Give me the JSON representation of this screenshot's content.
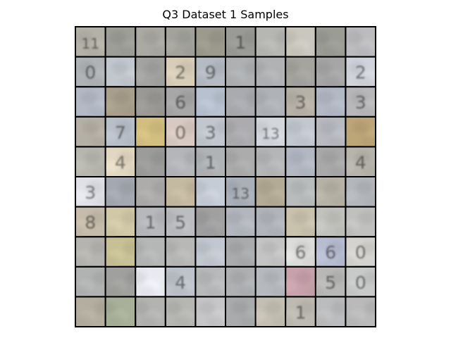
{
  "figure": {
    "title": "Q3 Dataset 1 Samples"
  },
  "samples": {
    "rows": 10,
    "cols": 10,
    "digits": [
      [
        "11",
        "",
        "",
        "",
        "",
        "1",
        "",
        "",
        "",
        ""
      ],
      [
        "0",
        "",
        "",
        "2",
        "9",
        "",
        "",
        "",
        "",
        "2"
      ],
      [
        "",
        "",
        "",
        "6",
        "",
        "",
        "",
        "3",
        "",
        "3"
      ],
      [
        "",
        "7",
        "",
        "0",
        "3",
        "",
        "13",
        "",
        "",
        ""
      ],
      [
        "",
        "4",
        "",
        "",
        "1",
        "",
        "",
        "",
        "",
        "4"
      ],
      [
        "3",
        "",
        "",
        "",
        "",
        "13",
        "",
        "",
        "",
        ""
      ],
      [
        "8",
        "",
        "1",
        "5",
        "",
        "",
        "",
        "",
        "",
        ""
      ],
      [
        "",
        "",
        "",
        "",
        "",
        "",
        "",
        "6",
        "6",
        "0"
      ],
      [
        "",
        "",
        "",
        "4",
        "",
        "",
        "",
        "",
        "5",
        "0"
      ],
      [
        "",
        "",
        "",
        "",
        "",
        "",
        "",
        "1",
        "",
        ""
      ]
    ],
    "tile_colors": [
      [
        "#b4b2a8",
        "#9e9e98",
        "#aaa9a2",
        "#a3a39c",
        "#9b9a8d",
        "#9a9a96",
        "#b6b6b3",
        "#c9c7be",
        "#9c9c96",
        "#bcbcbf"
      ],
      [
        "#b0b3b6",
        "#c2c7ce",
        "#a3a3a1",
        "#d8cdb8",
        "#b5bac3",
        "#aeb0b2",
        "#b0b2b4",
        "#a5a49f",
        "#a6a6a6",
        "#d0d3d9"
      ],
      [
        "#b3b9c5",
        "#a89f8c",
        "#9a9996",
        "#a6a7a6",
        "#b7c1cf",
        "#a9abaf",
        "#afb3b7",
        "#b7b2a8",
        "#b3b8c5",
        "#b8b8bb"
      ],
      [
        "#b5b0a5",
        "#b8bfc9",
        "#d2bf80",
        "#d8cac2",
        "#c2c6ce",
        "#acacaf",
        "#d3d7dc",
        "#c3c7d0",
        "#b8bac0",
        "#bca678"
      ],
      [
        "#b8b7af",
        "#e2d8c2",
        "#9c9c9a",
        "#b4b6ba",
        "#b0b3b6",
        "#abacab",
        "#b5b6b8",
        "#b3b8c2",
        "#a8a9a8",
        "#b6b4ab"
      ],
      [
        "#dfe1e6",
        "#a4a8b0",
        "#adacaa",
        "#c4b9a1",
        "#c6ccd6",
        "#aab0b8",
        "#b3ab95",
        "#b9bcbd",
        "#b6b2a6",
        "#b3b6ba"
      ],
      [
        "#c6bcac",
        "#d0c8a6",
        "#b6b8bb",
        "#bcbdc0",
        "#a0a0a1",
        "#b3b7bd",
        "#b1b4ba",
        "#c9c2ad",
        "#c1c1bd",
        "#c0c0bf"
      ],
      [
        "#b5b4b0",
        "#c7c096",
        "#b5b6b6",
        "#b8b8b6",
        "#c3c7cf",
        "#a9abad",
        "#c4c4c4",
        "#dcdcdb",
        "#b7bdd0",
        "#d4d3cf"
      ],
      [
        "#b1b3b2",
        "#a0a09e",
        "#e8eaf0",
        "#bec2ca",
        "#b8b9ba",
        "#aeb0b2",
        "#b6b9bd",
        "#c7a2ac",
        "#b8b8b6",
        "#c7cac8"
      ],
      [
        "#b3ae9f",
        "#a9b09a",
        "#b3b3b1",
        "#b6b6b3",
        "#c6c6c8",
        "#aaabac",
        "#c3bfb2",
        "#bdbab2",
        "#bbbcbd",
        "#b9bab9"
      ]
    ]
  }
}
